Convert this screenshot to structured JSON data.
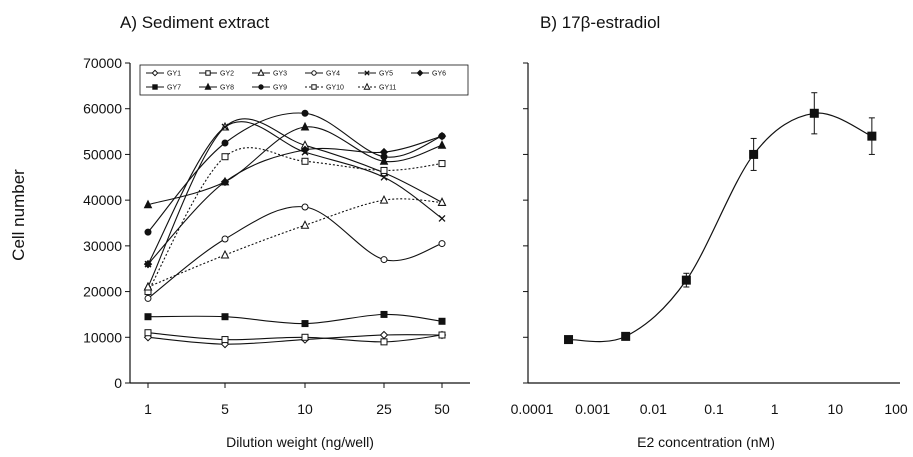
{
  "ylabel_shared": "Cell number",
  "chart_data": [
    {
      "type": "line",
      "title": "A) Sediment extract",
      "xlabel": "Dilution weight (ng/well)",
      "ylabel": "Cell number",
      "categories": [
        "1",
        "5",
        "10",
        "25",
        "50"
      ],
      "ylim": [
        0,
        70000
      ],
      "yticks": [
        "0",
        "10000",
        "20000",
        "30000",
        "40000",
        "50000",
        "60000",
        "70000"
      ],
      "grid": false,
      "legend_position": "top",
      "series": [
        {
          "name": "GY1",
          "marker": "diamond-open",
          "dash": "solid",
          "values": [
            10000,
            8500,
            9500,
            10500,
            10500
          ]
        },
        {
          "name": "GY2",
          "marker": "square-open",
          "dash": "solid",
          "values": [
            11000,
            9500,
            10000,
            9000,
            10500
          ]
        },
        {
          "name": "GY3",
          "marker": "triangle-open",
          "dash": "solid",
          "values": [
            21000,
            56000,
            52000,
            46000,
            39500
          ]
        },
        {
          "name": "GY4",
          "marker": "circle-open",
          "dash": "solid",
          "values": [
            18500,
            31500,
            38500,
            27000,
            30500
          ]
        },
        {
          "name": "GY5",
          "marker": "x",
          "dash": "solid",
          "values": [
            26000,
            56000,
            50500,
            45000,
            36000
          ]
        },
        {
          "name": "GY6",
          "marker": "diamond-filled",
          "dash": "solid",
          "values": [
            26000,
            44000,
            51000,
            50500,
            54000
          ]
        },
        {
          "name": "GY7",
          "marker": "square-filled",
          "dash": "solid",
          "values": [
            14500,
            14500,
            13000,
            15000,
            13500
          ]
        },
        {
          "name": "GY8",
          "marker": "triangle-filled",
          "dash": "solid",
          "values": [
            39000,
            44000,
            56000,
            48500,
            52000
          ]
        },
        {
          "name": "GY9",
          "marker": "circle-filled",
          "dash": "solid",
          "values": [
            33000,
            52500,
            59000,
            49500,
            54000
          ]
        },
        {
          "name": "GY10",
          "marker": "square-open",
          "dash": "dotted",
          "values": [
            20000,
            49500,
            48500,
            46500,
            48000
          ]
        },
        {
          "name": "GY11",
          "marker": "triangle-open",
          "dash": "dotted",
          "values": [
            21000,
            28000,
            34500,
            40000,
            39500
          ]
        }
      ]
    },
    {
      "type": "line",
      "title": "B) 17β-estradiol",
      "xlabel": "E2 concentration (nM)",
      "x_scale": "log",
      "xlim": [
        0.0001,
        100
      ],
      "xticks": [
        "0.0001",
        "0.001",
        "0.01",
        "0.1",
        "1",
        "10",
        "100"
      ],
      "ylim": [
        0,
        70000
      ],
      "grid": false,
      "series": [
        {
          "marker": "square-filled",
          "x": [
            0.0004,
            0.0035,
            0.035,
            0.45,
            4.5,
            40
          ],
          "values": [
            9500,
            10200,
            22500,
            50000,
            59000,
            54000
          ],
          "error": [
            0,
            0,
            1500,
            3500,
            4500,
            4000
          ]
        }
      ]
    }
  ]
}
